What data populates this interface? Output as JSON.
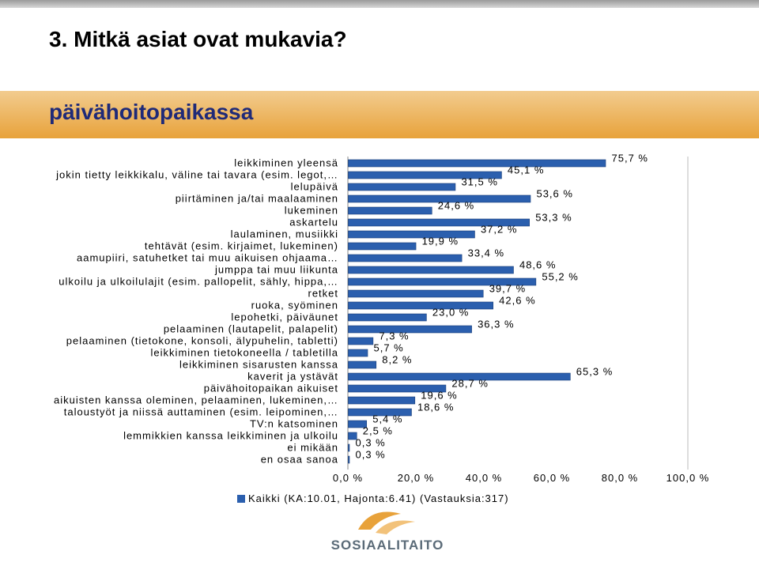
{
  "slide": {
    "title": "3. Mitkä asiat ovat mukavia?",
    "subtitle": "päivähoitopaikassa",
    "logo_text": "SOSIAALITAITO"
  },
  "chart_data": {
    "type": "bar",
    "orientation": "horizontal",
    "categories": [
      "leikkiminen yleensä",
      "jokin tietty leikkikalu, väline tai tavara (esim. legot,…",
      "lelupäivä",
      "piirtäminen ja/tai maalaaminen",
      "lukeminen",
      "askartelu",
      "laulaminen, musiikki",
      "tehtävät (esim. kirjaimet, lukeminen)",
      "aamupiiri, satuhetket tai muu aikuisen ohjaama…",
      "jumppa tai muu liikunta",
      "ulkoilu ja ulkoilulajit (esim. pallopelit, sähly, hippa,…",
      "retket",
      "ruoka, syöminen",
      "lepohetki, päiväunet",
      "pelaaminen (lautapelit, palapelit)",
      "pelaaminen (tietokone, konsoli, älypuhelin, tabletti)",
      "leikkiminen tietokoneella / tabletilla",
      "leikkiminen sisarusten kanssa",
      "kaverit ja ystävät",
      "päivähoitopaikan aikuiset",
      "aikuisten kanssa oleminen, pelaaminen, lukeminen,…",
      "taloustyöt ja niissä auttaminen (esim. leipominen,…",
      "TV:n katsominen",
      "lemmikkien kanssa leikkiminen ja ulkoilu",
      "ei mikään",
      "en osaa sanoa"
    ],
    "series": [
      {
        "name": "Kaikki (KA:10.01, Hajonta:6.41) (Vastauksia:317)",
        "values": [
          75.7,
          45.1,
          31.5,
          53.6,
          24.6,
          53.3,
          37.2,
          19.9,
          33.4,
          48.6,
          55.2,
          39.7,
          42.6,
          23.0,
          36.3,
          7.3,
          5.7,
          8.2,
          65.3,
          28.7,
          19.6,
          18.6,
          5.4,
          2.5,
          0.3,
          0.3
        ],
        "labels": [
          "75,7 %",
          "45,1 %",
          "31,5 %",
          "53,6 %",
          "24,6 %",
          "53,3 %",
          "37,2 %",
          "19,9 %",
          "33,4 %",
          "48,6 %",
          "55,2 %",
          "39,7 %",
          "42,6 %",
          "23,0 %",
          "36,3 %",
          "7,3 %",
          "5,7 %",
          "8,2 %",
          "65,3 %",
          "28,7 %",
          "19,6 %",
          "18,6 %",
          "5,4 %",
          "2,5 %",
          "0,3 %",
          "0,3 %"
        ]
      }
    ],
    "x_ticks": [
      "0,0 %",
      "20,0 %",
      "40,0 %",
      "60,0 %",
      "80,0 %",
      "100,0 %"
    ],
    "xlim": [
      0,
      100
    ],
    "grid": false,
    "legend_position": "bottom",
    "bar_color": "#2b5fae",
    "bar_edge_color": "#1a3f7a"
  }
}
